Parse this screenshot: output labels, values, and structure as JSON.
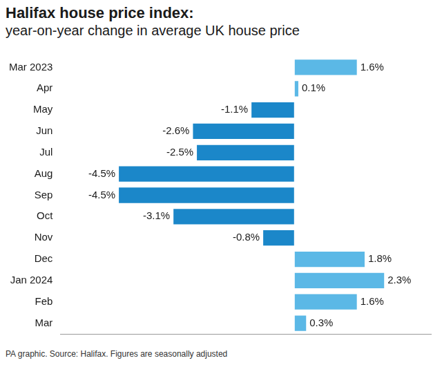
{
  "chart_data": {
    "type": "bar",
    "title": "Halifax house price index:",
    "subtitle": "year-on-year change in average UK house price",
    "caption": "PA graphic. Source: Halifax. Figures are seasonally adjusted",
    "orientation": "horizontal",
    "categories": [
      "Mar 2023",
      "Apr",
      "May",
      "Jun",
      "Jul",
      "Aug",
      "Sep",
      "Oct",
      "Nov",
      "Dec",
      "Jan 2024",
      "Feb",
      "Mar"
    ],
    "values": [
      1.6,
      0.1,
      -1.1,
      -2.6,
      -2.5,
      -4.5,
      -4.5,
      -3.1,
      -0.8,
      1.8,
      2.3,
      1.6,
      0.3
    ],
    "value_labels": [
      "1.6%",
      "0.1%",
      "-1.1%",
      "-2.6%",
      "-2.5%",
      "-4.5%",
      "-4.5%",
      "-3.1%",
      "-0.8%",
      "1.8%",
      "2.3%",
      "1.6%",
      "0.3%"
    ],
    "colors": [
      "#5bb8e6",
      "#5bb8e6",
      "#1b87c9",
      "#1b87c9",
      "#1b87c9",
      "#1b87c9",
      "#1b87c9",
      "#1b87c9",
      "#1b87c9",
      "#5bb8e6",
      "#5bb8e6",
      "#5bb8e6",
      "#5bb8e6"
    ],
    "xlim": [
      -6,
      3.5
    ],
    "grid": false,
    "data_labels": true,
    "tick_labels": "y"
  }
}
